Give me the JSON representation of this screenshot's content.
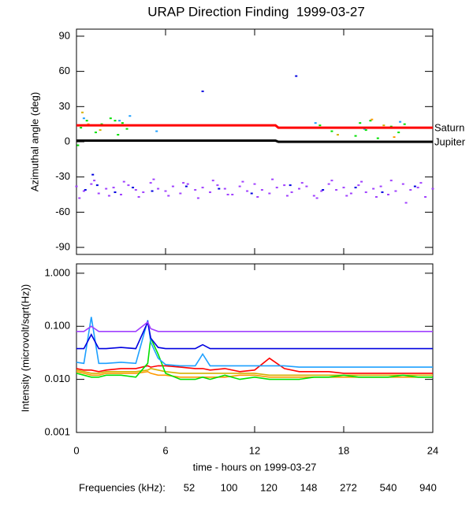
{
  "chart_data": [
    {
      "type": "scatter",
      "title": "URAP Direction Finding  1999-03-27",
      "y_label": "Azimuthal angle (deg)",
      "xlim": [
        0,
        24
      ],
      "xticks": [
        0,
        6,
        12,
        18,
        24
      ],
      "ylim": [
        -96,
        96
      ],
      "yticks": [
        90,
        60,
        30,
        0,
        -30,
        -60,
        -90
      ],
      "series": [
        {
          "name": "Saturn",
          "color": "#ff0000",
          "x": [
            0,
            13.4,
            13.6,
            24
          ],
          "values": [
            14,
            14,
            12,
            12
          ]
        },
        {
          "name": "Jupiter",
          "color": "#000000",
          "x": [
            0,
            13.4,
            13.6,
            24
          ],
          "values": [
            1,
            1,
            0,
            0
          ]
        }
      ],
      "points": [
        {
          "color": "#a040ff",
          "x": [
            0,
            0.5,
            1,
            1.5,
            2,
            2.5,
            3,
            3.5,
            4,
            4.5,
            5,
            5.5,
            6,
            6.5,
            7,
            7.5,
            8,
            8.5,
            9,
            9.5,
            10,
            10.5,
            11,
            11.5,
            12,
            12.5,
            13,
            13.5,
            14,
            14.5,
            15,
            15.5,
            16,
            16.5,
            17,
            17.5,
            18,
            18.5,
            19,
            19.5,
            20,
            20.5,
            21,
            21.5,
            22,
            22.5,
            23,
            23.5,
            24,
            0.2,
            1.2,
            2.2,
            3.2,
            4.2,
            5.2,
            6.2,
            7.2,
            8.2,
            9.2,
            10.2,
            11.2,
            12.2,
            13.2,
            14.2,
            15.2,
            16.2,
            17.2,
            18.2,
            19.2,
            20.2,
            21.2,
            22.2,
            23.2
          ],
          "values": [
            -38,
            -42,
            -36,
            -44,
            -40,
            -39,
            -45,
            -37,
            -41,
            -43,
            -35,
            -40,
            -42,
            -38,
            -44,
            -36,
            -41,
            -39,
            -43,
            -37,
            -40,
            -45,
            -38,
            -42,
            -36,
            -41,
            -44,
            -39,
            -37,
            -43,
            -40,
            -38,
            -46,
            -42,
            -36,
            -41,
            -39,
            -44,
            -37,
            -43,
            -40,
            -38,
            -45,
            -42,
            -36,
            -41,
            -39,
            -47,
            -40,
            -48,
            -33,
            -46,
            -34,
            -47,
            -32,
            -46,
            -35,
            -48,
            -33,
            -45,
            -34,
            -47,
            -32,
            -46,
            -35,
            -48,
            -33,
            -46,
            -34,
            -47,
            -33,
            -52,
            -35
          ]
        },
        {
          "color": "#0000e0",
          "x": [
            0.6,
            1.4,
            2.6,
            3.8,
            5.1,
            7.4,
            9.6,
            11.8,
            14.4,
            16.6,
            18.8,
            20.6,
            22.8,
            8.5,
            14.8,
            1.1
          ],
          "values": [
            -41,
            -37,
            -43,
            -39,
            -42,
            -38,
            -40,
            -44,
            -37,
            -41,
            -39,
            -43,
            -38,
            43,
            56,
            -28
          ]
        },
        {
          "color": "#00e000",
          "x": [
            0.3,
            0.7,
            1.3,
            1.7,
            2.3,
            2.8,
            3.1,
            3.4,
            16.4,
            17.2,
            18.4,
            18.8,
            19.1,
            19.5,
            19.8,
            20.3,
            21.2,
            21.7,
            22.1,
            0.1,
            2.6
          ],
          "values": [
            12,
            18,
            8,
            15,
            20,
            6,
            16,
            11,
            14,
            9,
            12,
            5,
            16,
            10,
            18,
            3,
            13,
            8,
            15,
            -3,
            18
          ]
        },
        {
          "color": "#1ea0ff",
          "x": [
            0.5,
            1.8,
            2.9,
            5.4,
            16.1,
            19.4,
            21.8,
            3.6
          ],
          "values": [
            20,
            14,
            18,
            9,
            16,
            11,
            17,
            22
          ]
        },
        {
          "color": "#d4b000",
          "x": [
            0.4,
            1.6,
            17.6,
            20.7
          ],
          "values": [
            25,
            10,
            6,
            14
          ]
        },
        {
          "color": "#ff9900",
          "x": [
            0.8,
            19.9,
            21.4
          ],
          "values": [
            15,
            19,
            4
          ]
        }
      ]
    },
    {
      "type": "line",
      "x_label": "time - hours on 1999-03-27",
      "y_label": "Intensity (microvolt/sqrt(Hz))",
      "log_scale": true,
      "legend_title": "Frequencies (kHz):",
      "xlim": [
        0,
        24
      ],
      "xticks": [
        0,
        6,
        12,
        18,
        24
      ],
      "ylim": [
        0.001,
        1.5
      ],
      "yticks": [
        {
          "value": 1,
          "label": "1.000"
        },
        {
          "value": 0.1,
          "label": "0.100"
        },
        {
          "value": 0.01,
          "label": "0.010"
        },
        {
          "value": 0.001,
          "label": "0.001"
        }
      ],
      "x": [
        0,
        0.5,
        1,
        1.5,
        2,
        3,
        4,
        4.8,
        5,
        5.5,
        6,
        7,
        8,
        8.5,
        9,
        10,
        11,
        12,
        13,
        14,
        15,
        16,
        17,
        18,
        19,
        20,
        21,
        22,
        23,
        24
      ],
      "series": [
        {
          "name": "52",
          "color": "#ff0000",
          "values": [
            0.016,
            0.015,
            0.015,
            0.014,
            0.015,
            0.016,
            0.016,
            0.018,
            0.017,
            0.018,
            0.018,
            0.017,
            0.016,
            0.016,
            0.015,
            0.016,
            0.014,
            0.015,
            0.025,
            0.016,
            0.014,
            0.014,
            0.014,
            0.013,
            0.013,
            0.013,
            0.013,
            0.013,
            0.013,
            0.013
          ]
        },
        {
          "name": "100",
          "color": "#ff9900",
          "values": [
            0.014,
            0.013,
            0.012,
            0.012,
            0.013,
            0.013,
            0.013,
            0.014,
            0.013,
            0.012,
            0.012,
            0.011,
            0.011,
            0.011,
            0.011,
            0.011,
            0.012,
            0.012,
            0.011,
            0.011,
            0.011,
            0.011,
            0.011,
            0.011,
            0.011,
            0.011,
            0.011,
            0.011,
            0.011,
            0.011
          ]
        },
        {
          "name": "120",
          "color": "#d4b000",
          "values": [
            0.015,
            0.014,
            0.013,
            0.013,
            0.014,
            0.014,
            0.014,
            0.015,
            0.016,
            0.015,
            0.014,
            0.013,
            0.013,
            0.013,
            0.013,
            0.013,
            0.013,
            0.013,
            0.012,
            0.012,
            0.012,
            0.012,
            0.012,
            0.012,
            0.012,
            0.012,
            0.012,
            0.012,
            0.012,
            0.012
          ]
        },
        {
          "name": "148",
          "color": "#00e000",
          "values": [
            0.013,
            0.012,
            0.011,
            0.011,
            0.012,
            0.012,
            0.011,
            0.02,
            0.06,
            0.03,
            0.013,
            0.01,
            0.01,
            0.011,
            0.01,
            0.012,
            0.01,
            0.011,
            0.01,
            0.01,
            0.01,
            0.011,
            0.011,
            0.012,
            0.011,
            0.011,
            0.011,
            0.012,
            0.011,
            0.011
          ]
        },
        {
          "name": "272",
          "color": "#1ea0ff",
          "values": [
            0.021,
            0.02,
            0.15,
            0.02,
            0.02,
            0.021,
            0.02,
            0.13,
            0.05,
            0.025,
            0.019,
            0.018,
            0.018,
            0.03,
            0.018,
            0.018,
            0.018,
            0.018,
            0.018,
            0.018,
            0.017,
            0.017,
            0.017,
            0.017,
            0.017,
            0.017,
            0.017,
            0.017,
            0.017,
            0.017
          ]
        },
        {
          "name": "540",
          "color": "#0000e0",
          "values": [
            0.038,
            0.038,
            0.07,
            0.038,
            0.038,
            0.04,
            0.038,
            0.12,
            0.06,
            0.04,
            0.038,
            0.038,
            0.038,
            0.045,
            0.038,
            0.038,
            0.038,
            0.038,
            0.038,
            0.038,
            0.038,
            0.038,
            0.038,
            0.038,
            0.038,
            0.038,
            0.038,
            0.038,
            0.038,
            0.038
          ]
        },
        {
          "name": "940",
          "color": "#a040ff",
          "values": [
            0.08,
            0.08,
            0.1,
            0.08,
            0.08,
            0.08,
            0.08,
            0.12,
            0.09,
            0.08,
            0.08,
            0.08,
            0.08,
            0.08,
            0.08,
            0.08,
            0.08,
            0.08,
            0.08,
            0.08,
            0.08,
            0.08,
            0.08,
            0.08,
            0.08,
            0.08,
            0.08,
            0.08,
            0.08,
            0.08
          ]
        }
      ]
    }
  ]
}
